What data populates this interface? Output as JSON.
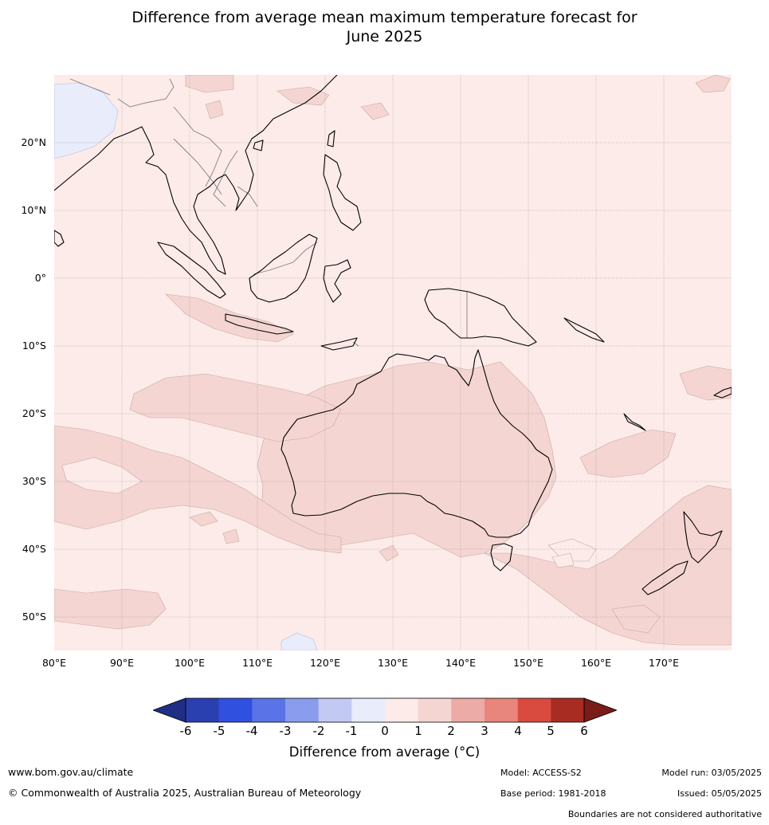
{
  "title_line1": "Difference from average mean maximum temperature forecast for",
  "title_line2": "June 2025",
  "lat_labels": [
    "20°N",
    "10°N",
    "0°",
    "10°S",
    "20°S",
    "30°S",
    "40°S",
    "50°S"
  ],
  "lon_labels": [
    "80°E",
    "90°E",
    "100°E",
    "110°E",
    "120°E",
    "130°E",
    "140°E",
    "150°E",
    "160°E",
    "170°E"
  ],
  "colorbar": {
    "ticks": [
      "-6",
      "-5",
      "-4",
      "-3",
      "-2",
      "-1",
      "0",
      "1",
      "2",
      "3",
      "4",
      "5",
      "6"
    ],
    "colors": [
      "#1f2f86",
      "#2a3fb0",
      "#3050e0",
      "#5a73e6",
      "#8a9cec",
      "#c2c9f3",
      "#e8ecfb",
      "#fcebe9",
      "#f4d5d2",
      "#ecaba6",
      "#e8857c",
      "#d94a3f",
      "#a92c22",
      "#7a1d18"
    ],
    "label": "Difference from average ($^\\circ$C)",
    "label_display": "Difference from average (°C)"
  },
  "footer": {
    "website": "www.bom.gov.au/climate",
    "copyright": "© Commonwealth of Australia 2025, Australian Bureau of Meteorology",
    "model": "Model: ACCESS-S2",
    "base_period": "Base period: 1981-2018",
    "model_run": "Model run: 03/05/2025",
    "issued": "Issued: 05/05/2025",
    "disclaimer": "Boundaries are not considered authoritative"
  }
}
